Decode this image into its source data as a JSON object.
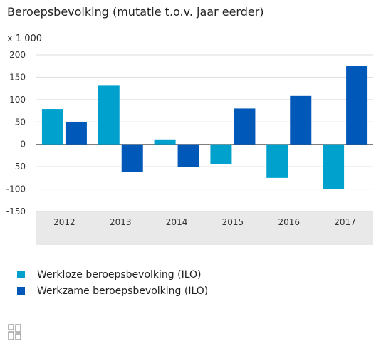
{
  "chart_data": {
    "type": "bar",
    "title": "Beroepsbevolking (mutatie t.o.v. jaar eerder)",
    "ylabel": "x 1 000",
    "categories": [
      "2012",
      "2013",
      "2014",
      "2015",
      "2016",
      "2017"
    ],
    "series": [
      {
        "name": "Werkloze beroepsbevolking (ILO)",
        "color": "#00a1cd",
        "values": [
          79,
          131,
          11,
          -45,
          -75,
          -100
        ]
      },
      {
        "name": "Werkzame beroepsbevolking (ILO)",
        "color": "#0058b8",
        "values": [
          49,
          -61,
          -50,
          80,
          108,
          175
        ]
      }
    ],
    "ylim": [
      -150,
      200
    ],
    "yticks": [
      200,
      150,
      100,
      50,
      0,
      -50,
      -100,
      -150
    ],
    "grid": true,
    "legend": "bottom-left"
  },
  "logo": {
    "icon": "cbs-logo-icon"
  }
}
